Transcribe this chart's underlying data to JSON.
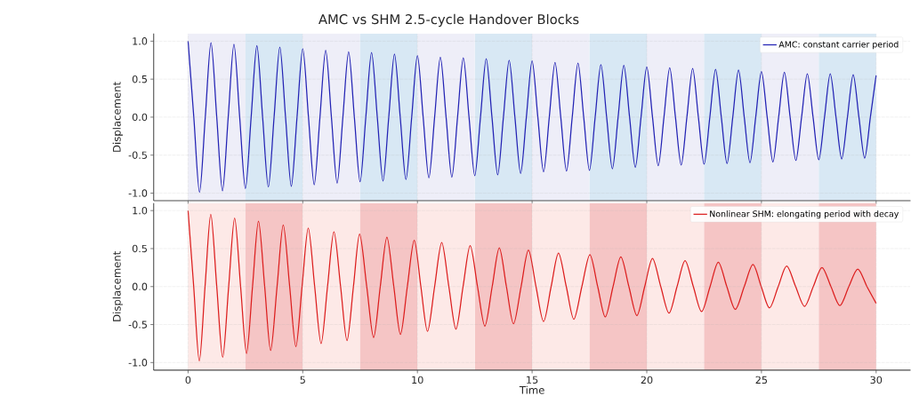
{
  "chart_data": [
    {
      "type": "line",
      "title": "AMC vs SHM 2.5-cycle Handover Blocks",
      "ylabel": "Displacement",
      "xlim": [
        -1.5,
        31.5
      ],
      "ylim": [
        -1.1,
        1.1
      ],
      "xticks": [
        0,
        5,
        10,
        15,
        20,
        25,
        30
      ],
      "yticks": [
        {
          "value": -1,
          "label": "-1.0"
        },
        {
          "value": -0.5,
          "label": "-0.5"
        },
        {
          "value": 0,
          "label": "0.0"
        },
        {
          "value": 0.5,
          "label": "0.5"
        },
        {
          "value": 1,
          "label": "1.0"
        }
      ],
      "tick_labels": "y",
      "grid": true,
      "legend": "top right",
      "bands": [
        {
          "axis": "x",
          "from": 0,
          "to": 2.5,
          "color": "#eeeef8"
        },
        {
          "axis": "x",
          "from": 2.5,
          "to": 5,
          "color": "#d8e8f4"
        },
        {
          "axis": "x",
          "from": 5,
          "to": 7.5,
          "color": "#eeeef8"
        },
        {
          "axis": "x",
          "from": 7.5,
          "to": 10,
          "color": "#d8e8f4"
        },
        {
          "axis": "x",
          "from": 10,
          "to": 12.5,
          "color": "#eeeef8"
        },
        {
          "axis": "x",
          "from": 12.5,
          "to": 15,
          "color": "#d8e8f4"
        },
        {
          "axis": "x",
          "from": 15,
          "to": 17.5,
          "color": "#eeeef8"
        },
        {
          "axis": "x",
          "from": 17.5,
          "to": 20,
          "color": "#d8e8f4"
        },
        {
          "axis": "x",
          "from": 20,
          "to": 22.5,
          "color": "#eeeef8"
        },
        {
          "axis": "x",
          "from": 22.5,
          "to": 25,
          "color": "#d8e8f4"
        },
        {
          "axis": "x",
          "from": 25,
          "to": 27.5,
          "color": "#eeeef8"
        },
        {
          "axis": "x",
          "from": 27.5,
          "to": 30,
          "color": "#d8e8f4"
        }
      ],
      "series": [
        {
          "name": "AMC: constant carrier period",
          "color": "#2323b4",
          "x": [
            0,
            0.25,
            0.5,
            0.75,
            1,
            1.25,
            1.5,
            1.75,
            2,
            2.25,
            2.5,
            2.75,
            3,
            3.25,
            3.5,
            3.75,
            4,
            4.25,
            4.5,
            4.75,
            5,
            5.25,
            5.5,
            5.75,
            6,
            6.25,
            6.5,
            6.75,
            7,
            7.25,
            7.5,
            7.75,
            8,
            8.25,
            8.5,
            8.75,
            9,
            9.25,
            9.5,
            9.75,
            10,
            10.25,
            10.5,
            10.75,
            11,
            11.25,
            11.5,
            11.75,
            12,
            12.25,
            12.5,
            12.75,
            13,
            13.25,
            13.5,
            13.75,
            14,
            14.25,
            14.5,
            14.75,
            15,
            15.25,
            15.5,
            15.75,
            16,
            16.25,
            16.5,
            16.75,
            17,
            17.25,
            17.5,
            17.75,
            18,
            18.25,
            18.5,
            18.75,
            19,
            19.25,
            19.5,
            19.75,
            20,
            20.25,
            20.5,
            20.75,
            21,
            21.25,
            21.5,
            21.75,
            22,
            22.25,
            22.5,
            22.75,
            23,
            23.25,
            23.5,
            23.75,
            24,
            24.25,
            24.5,
            24.75,
            25,
            25.25,
            25.5,
            25.75,
            26,
            26.25,
            26.5,
            26.75,
            27,
            27.25,
            27.5,
            27.75,
            28,
            28.25,
            28.5,
            28.75,
            29,
            29.25,
            29.5,
            29.75,
            30
          ],
          "values": [
            1.0,
            0,
            -0.99,
            0,
            0.98,
            0,
            -0.97,
            0,
            0.96,
            0,
            -0.94,
            0,
            0.94,
            0,
            -0.92,
            0,
            0.92,
            0,
            -0.91,
            0,
            0.9,
            0,
            -0.89,
            0,
            0.88,
            0,
            -0.87,
            0,
            0.86,
            0,
            -0.85,
            0,
            0.85,
            0,
            -0.84,
            0,
            0.83,
            0,
            -0.82,
            0,
            0.81,
            0,
            -0.8,
            0,
            0.79,
            0,
            -0.79,
            0,
            0.78,
            0,
            -0.77,
            0,
            0.77,
            0,
            -0.76,
            0,
            0.75,
            0,
            -0.74,
            0,
            0.74,
            0,
            -0.72,
            0,
            0.72,
            0,
            -0.71,
            0,
            0.71,
            0,
            -0.7,
            0,
            0.69,
            0,
            -0.68,
            0,
            0.68,
            0,
            -0.66,
            0,
            0.66,
            0,
            -0.64,
            0,
            0.65,
            0,
            -0.63,
            0,
            0.64,
            0,
            -0.62,
            0,
            0.63,
            0,
            -0.61,
            0,
            0.62,
            0,
            -0.6,
            0,
            0.6,
            0,
            -0.59,
            0,
            0.59,
            0,
            -0.57,
            0,
            0.57,
            0,
            -0.56,
            0,
            0.57,
            0,
            -0.55,
            0,
            0.56,
            0,
            -0.54,
            0,
            0.55
          ]
        }
      ]
    },
    {
      "type": "line",
      "xlabel": "Time",
      "ylabel": "Displacement",
      "xlim": [
        -1.5,
        31.5
      ],
      "ylim": [
        -1.1,
        1.1
      ],
      "xticks": [
        0,
        5,
        10,
        15,
        20,
        25,
        30
      ],
      "yticks": [
        {
          "value": -1,
          "label": "-1.0"
        },
        {
          "value": -0.5,
          "label": "-0.5"
        },
        {
          "value": 0,
          "label": "0.0"
        },
        {
          "value": 0.5,
          "label": "0.5"
        },
        {
          "value": 1,
          "label": "1.0"
        }
      ],
      "grid": true,
      "legend": "top right",
      "bands": [
        {
          "axis": "x",
          "from": 0,
          "to": 2.5,
          "color": "#fde9e7"
        },
        {
          "axis": "x",
          "from": 2.5,
          "to": 5,
          "color": "#f5c5c5"
        },
        {
          "axis": "x",
          "from": 5,
          "to": 7.5,
          "color": "#fde9e7"
        },
        {
          "axis": "x",
          "from": 7.5,
          "to": 10,
          "color": "#f5c5c5"
        },
        {
          "axis": "x",
          "from": 10,
          "to": 12.5,
          "color": "#fde9e7"
        },
        {
          "axis": "x",
          "from": 12.5,
          "to": 15,
          "color": "#f5c5c5"
        },
        {
          "axis": "x",
          "from": 15,
          "to": 17.5,
          "color": "#fde9e7"
        },
        {
          "axis": "x",
          "from": 17.5,
          "to": 20,
          "color": "#f5c5c5"
        },
        {
          "axis": "x",
          "from": 20,
          "to": 22.5,
          "color": "#fde9e7"
        },
        {
          "axis": "x",
          "from": 22.5,
          "to": 25,
          "color": "#f5c5c5"
        },
        {
          "axis": "x",
          "from": 25,
          "to": 27.5,
          "color": "#fde9e7"
        },
        {
          "axis": "x",
          "from": 27.5,
          "to": 30,
          "color": "#f5c5c5"
        }
      ],
      "series": [
        {
          "name": "Nonlinear SHM: elongating period with decay",
          "color": "#dc1e1e",
          "x": [
            0,
            0.245,
            0.49,
            0.74,
            0.99,
            1.25,
            1.51,
            1.77,
            2.03,
            2.29,
            2.55,
            2.81,
            3.07,
            3.34,
            3.6,
            3.88,
            4.15,
            4.43,
            4.7,
            4.97,
            5.24,
            5.52,
            5.8,
            6.08,
            6.36,
            6.65,
            6.93,
            7.21,
            7.48,
            7.79,
            8.09,
            8.38,
            8.67,
            8.97,
            9.26,
            9.56,
            9.86,
            10.15,
            10.44,
            10.75,
            11.06,
            11.37,
            11.68,
            11.99,
            12.3,
            12.62,
            12.94,
            13.26,
            13.57,
            13.88,
            14.19,
            14.52,
            14.84,
            15.17,
            15.5,
            15.83,
            16.15,
            16.49,
            16.82,
            17.17,
            17.52,
            17.86,
            18.19,
            18.53,
            18.87,
            19.22,
            19.57,
            19.91,
            20.25,
            20.61,
            20.97,
            21.32,
            21.67,
            22.03,
            22.39,
            22.76,
            23.12,
            23.49,
            23.86,
            24.25,
            24.63,
            24.99,
            25.35,
            25.73,
            26.1,
            26.49,
            26.88,
            27.26,
            27.64,
            28.03,
            28.42,
            28.81,
            29.2,
            29.6,
            30
          ],
          "values": [
            1.0,
            0,
            -0.98,
            0,
            0.95,
            0,
            -0.93,
            0,
            0.9,
            0,
            -0.88,
            0,
            0.86,
            0,
            -0.84,
            0,
            0.81,
            0,
            -0.79,
            0,
            0.77,
            0,
            -0.75,
            0,
            0.72,
            0,
            -0.71,
            0,
            0.69,
            0,
            -0.67,
            0,
            0.65,
            0,
            -0.63,
            0,
            0.61,
            0,
            -0.59,
            0,
            0.58,
            0,
            -0.56,
            0,
            0.54,
            0,
            -0.52,
            0,
            0.51,
            0,
            -0.49,
            0,
            0.48,
            0,
            -0.46,
            0,
            0.44,
            0,
            -0.43,
            0,
            0.42,
            0,
            -0.4,
            0,
            0.39,
            0,
            -0.38,
            0,
            0.37,
            0,
            -0.35,
            0,
            0.34,
            0,
            -0.33,
            0,
            0.32,
            0,
            -0.3,
            0,
            0.29,
            0,
            -0.28,
            0,
            0.27,
            0,
            -0.26,
            0,
            0.25,
            0,
            -0.25,
            0,
            0.23,
            0,
            -0.22
          ]
        }
      ]
    }
  ]
}
